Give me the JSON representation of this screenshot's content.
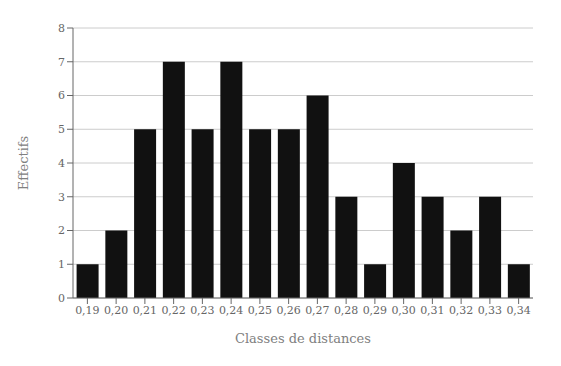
{
  "chart_data": {
    "type": "bar",
    "categories": [
      "0,19",
      "0,20",
      "0,21",
      "0,22",
      "0,23",
      "0,24",
      "0,25",
      "0,26",
      "0,27",
      "0,28",
      "0,29",
      "0,30",
      "0,31",
      "0,32",
      "0,33",
      "0,34"
    ],
    "values": [
      1,
      2,
      5,
      7,
      5,
      7,
      5,
      5,
      6,
      3,
      1,
      4,
      3,
      2,
      3,
      1
    ],
    "color": "#111111",
    "xlabel": "Classes de distances",
    "ylabel": "Effectifs",
    "ylim": [
      0,
      8
    ],
    "yticks": [
      0,
      1,
      2,
      3,
      4,
      5,
      6,
      7,
      8
    ],
    "grid": true
  }
}
